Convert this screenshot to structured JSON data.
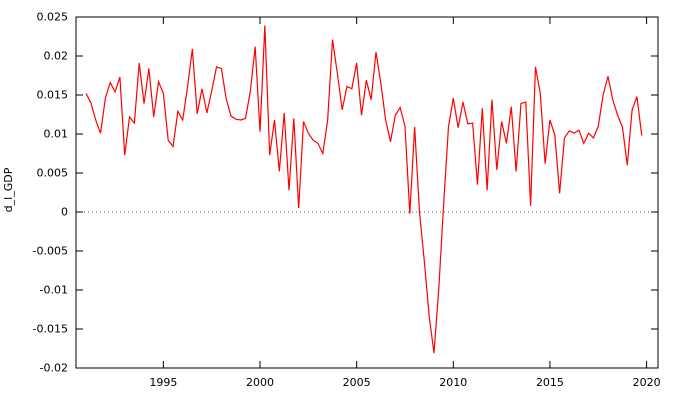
{
  "chart_data": {
    "type": "line",
    "title": "",
    "xlabel": "",
    "ylabel": "d_l_GDP",
    "xlim": [
      1990.48,
      2020.59
    ],
    "ylim": [
      -0.02,
      0.025
    ],
    "x_ticks": [
      1995,
      2000,
      2005,
      2010,
      2015,
      2020
    ],
    "x_tick_labels": [
      "1995",
      "2000",
      "2005",
      "2010",
      "2015",
      "2020"
    ],
    "y_ticks": [
      -0.02,
      -0.015,
      -0.01,
      -0.005,
      0,
      0.005,
      0.01,
      0.015,
      0.02,
      0.025
    ],
    "y_tick_labels": [
      "-0.02",
      "-0.015",
      "-0.01",
      "-0.005",
      "0",
      "0.005",
      "0.01",
      "0.015",
      "0.02",
      "0.025"
    ],
    "grid": false,
    "zero_line": true,
    "legend": "none",
    "colors": {
      "line": "#ff0000",
      "frame": "#000000",
      "zero_line": "#555555",
      "background": "#ffffff",
      "text": "#000000"
    },
    "series": [
      {
        "name": "d_l_GDP",
        "x_start": 1991.0,
        "x_step": 0.25,
        "frequency": "quarterly",
        "values": [
          0.0152,
          0.014,
          0.0118,
          0.0101,
          0.0146,
          0.0166,
          0.0154,
          0.0173,
          0.0073,
          0.0122,
          0.0114,
          0.0191,
          0.0139,
          0.0184,
          0.0122,
          0.0167,
          0.0152,
          0.0092,
          0.0084,
          0.0129,
          0.0118,
          0.016,
          0.0209,
          0.0126,
          0.0158,
          0.0127,
          0.0155,
          0.0186,
          0.0184,
          0.0145,
          0.0123,
          0.0119,
          0.0118,
          0.012,
          0.0155,
          0.0212,
          0.0103,
          0.0239,
          0.0073,
          0.0118,
          0.0052,
          0.0127,
          0.0028,
          0.012,
          0.0005,
          0.0116,
          0.0101,
          0.0092,
          0.0088,
          0.0075,
          0.0118,
          0.0221,
          0.0178,
          0.0131,
          0.0161,
          0.0158,
          0.0191,
          0.0124,
          0.0169,
          0.0144,
          0.0205,
          0.0165,
          0.0118,
          0.009,
          0.0124,
          0.0134,
          0.011,
          -0.0002,
          0.0109,
          0.0,
          -0.0063,
          -0.0133,
          -0.0181,
          -0.0098,
          0.001,
          0.0109,
          0.0146,
          0.0108,
          0.0141,
          0.0113,
          0.0114,
          0.0035,
          0.0133,
          0.0028,
          0.0144,
          0.0054,
          0.0116,
          0.0088,
          0.0135,
          0.0052,
          0.0139,
          0.0141,
          0.0008,
          0.0186,
          0.0152,
          0.0062,
          0.0118,
          0.0099,
          0.0024,
          0.0095,
          0.0104,
          0.0101,
          0.0105,
          0.0088,
          0.0101,
          0.0095,
          0.011,
          0.015,
          0.0174,
          0.0144,
          0.0124,
          0.0109,
          0.006,
          0.0131,
          0.0148,
          0.0098
        ]
      }
    ]
  }
}
